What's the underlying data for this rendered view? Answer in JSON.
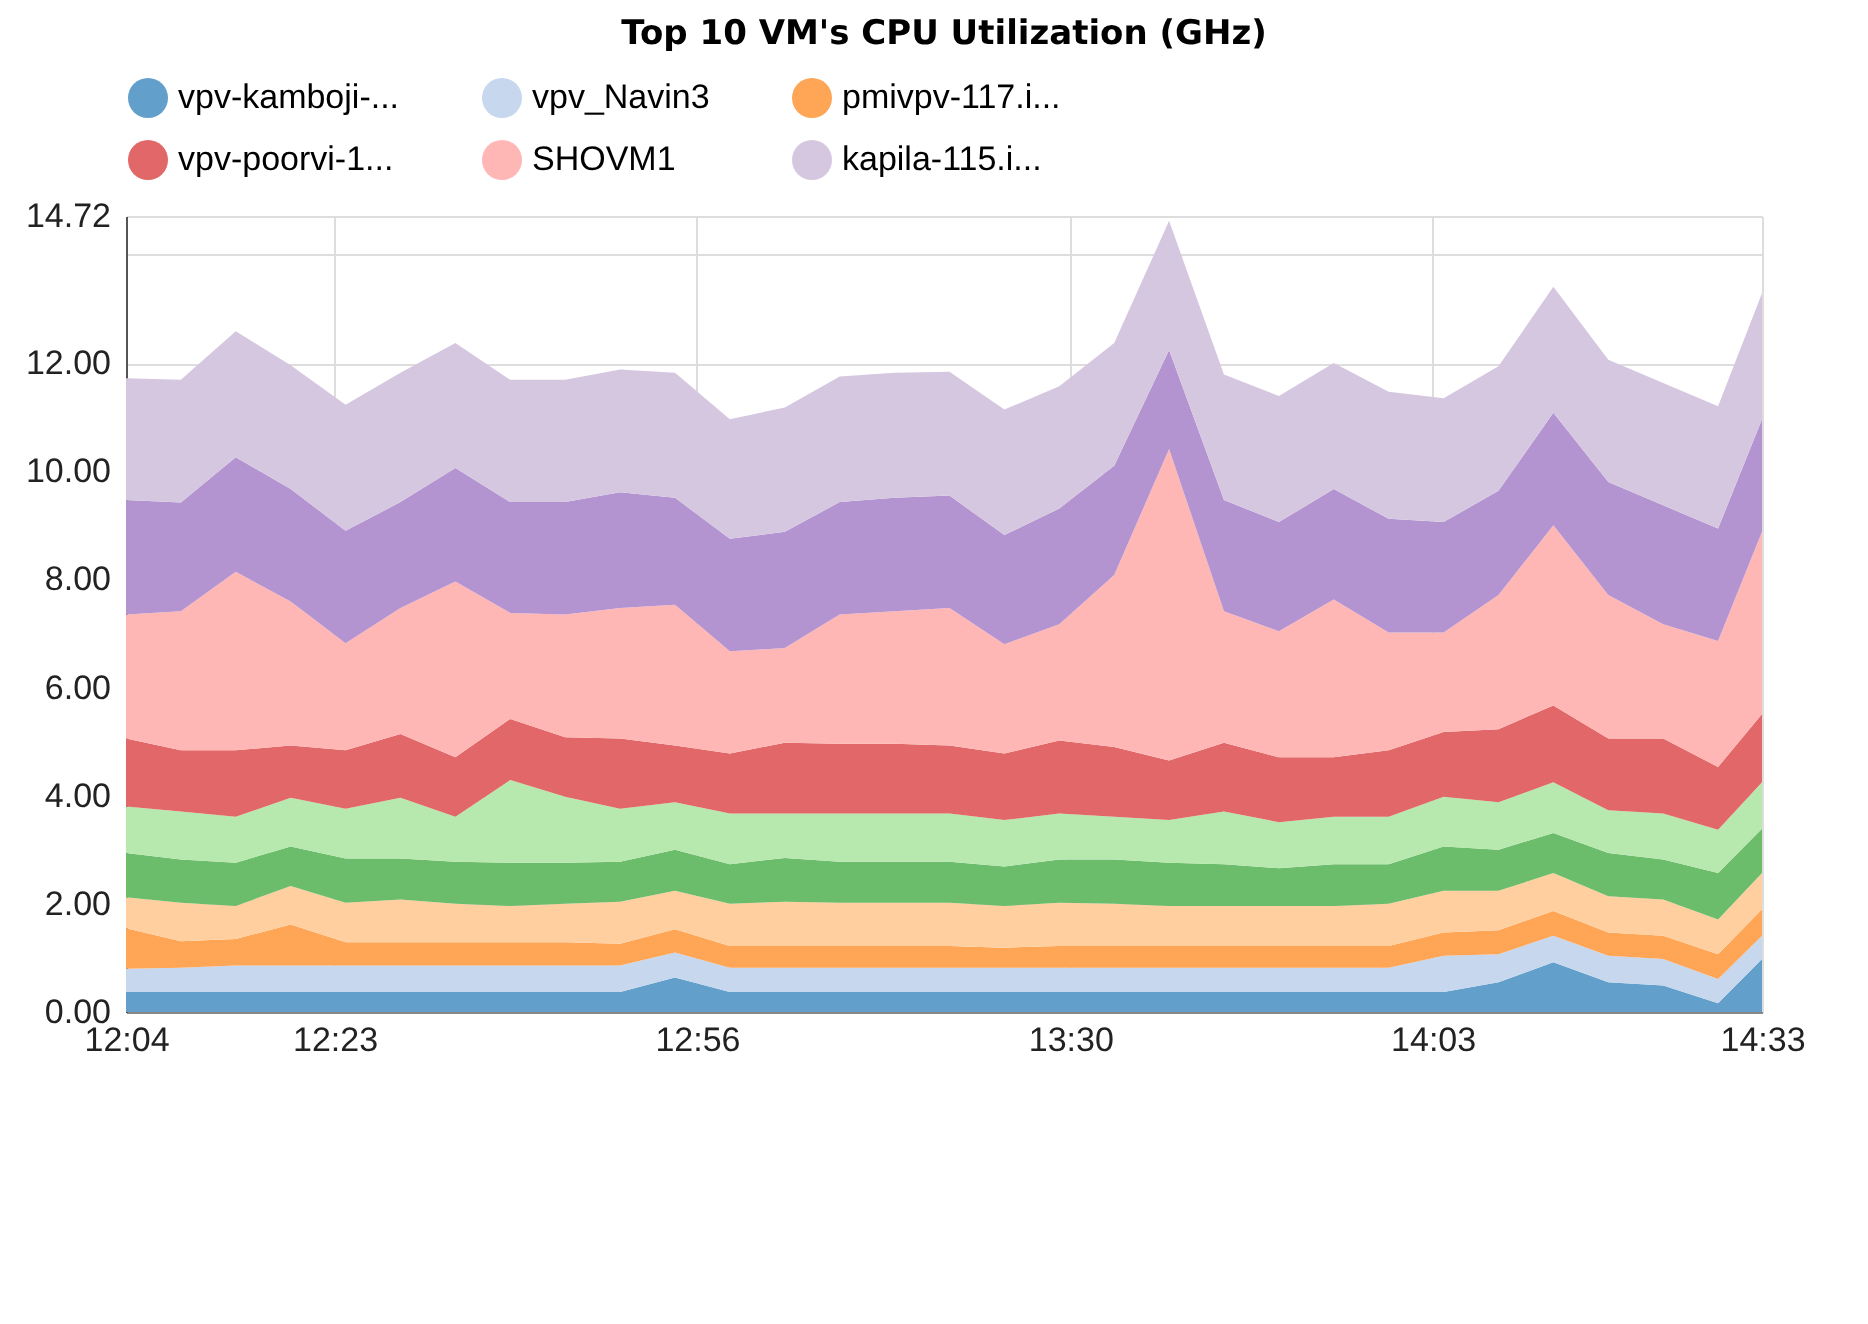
{
  "chart_data": {
    "type": "area",
    "title": "Top 10 VM's CPU Utilization (GHz)",
    "stacked": true,
    "grid": true,
    "legend": "top",
    "x": [
      12.0667,
      12.15,
      12.2333,
      12.3167,
      12.4,
      12.4833,
      12.5667,
      12.65,
      12.7333,
      12.8167,
      12.9,
      12.9833,
      13.0667,
      13.15,
      13.2333,
      13.3167,
      13.4,
      13.4833,
      13.5667,
      13.65,
      13.7333,
      13.8167,
      13.9,
      13.9833,
      14.0667,
      14.15,
      14.2333,
      14.3167,
      14.4,
      14.4833,
      14.55
    ],
    "xlim": [
      12.0667,
      14.55
    ],
    "xticks": [
      {
        "value": 12.0667,
        "label": "12:04"
      },
      {
        "value": 12.3833,
        "label": "12:23"
      },
      {
        "value": 12.9333,
        "label": "12:56"
      },
      {
        "value": 13.5,
        "label": "13:30"
      },
      {
        "value": 14.05,
        "label": "14:03"
      },
      {
        "value": 14.55,
        "label": "14:33"
      }
    ],
    "ylim": [
      0,
      14.72
    ],
    "yticks": [
      {
        "value": 0,
        "label": "0.00"
      },
      {
        "value": 2,
        "label": "2.00"
      },
      {
        "value": 4,
        "label": "4.00"
      },
      {
        "value": 6,
        "label": "6.00"
      },
      {
        "value": 8,
        "label": "8.00"
      },
      {
        "value": 10,
        "label": "10.00"
      },
      {
        "value": 12,
        "label": "12.00"
      },
      {
        "value": 14,
        "label": null
      },
      {
        "value": 14.72,
        "label": "14.72"
      }
    ],
    "series": [
      {
        "name": "vpv-kamboji-...",
        "color": "#629fca",
        "values": [
          0.37,
          0.37,
          0.37,
          0.37,
          0.37,
          0.37,
          0.37,
          0.37,
          0.37,
          0.37,
          0.64,
          0.37,
          0.37,
          0.37,
          0.37,
          0.37,
          0.37,
          0.37,
          0.37,
          0.37,
          0.37,
          0.37,
          0.37,
          0.37,
          0.37,
          0.55,
          0.92,
          0.55,
          0.49,
          0.16,
          0.98
        ]
      },
      {
        "name": "vpv_Navin3",
        "color": "#c6d7ee",
        "values": [
          0.43,
          0.45,
          0.49,
          0.49,
          0.49,
          0.49,
          0.49,
          0.49,
          0.49,
          0.49,
          0.46,
          0.45,
          0.45,
          0.45,
          0.45,
          0.45,
          0.45,
          0.45,
          0.45,
          0.45,
          0.45,
          0.45,
          0.45,
          0.45,
          0.67,
          0.52,
          0.49,
          0.49,
          0.49,
          0.45,
          0.43
        ]
      },
      {
        "name": "pmivpv-117.i...",
        "color": "#ffa556",
        "values": [
          0.75,
          0.49,
          0.49,
          0.76,
          0.43,
          0.43,
          0.43,
          0.43,
          0.43,
          0.4,
          0.43,
          0.4,
          0.4,
          0.4,
          0.4,
          0.4,
          0.37,
          0.4,
          0.4,
          0.4,
          0.4,
          0.4,
          0.4,
          0.4,
          0.43,
          0.44,
          0.46,
          0.43,
          0.43,
          0.46,
          0.49
        ]
      },
      {
        "color": "#ffcfa0",
        "values": [
          0.57,
          0.71,
          0.61,
          0.71,
          0.73,
          0.79,
          0.71,
          0.67,
          0.71,
          0.78,
          0.71,
          0.78,
          0.82,
          0.8,
          0.8,
          0.8,
          0.77,
          0.8,
          0.78,
          0.74,
          0.74,
          0.74,
          0.74,
          0.78,
          0.77,
          0.73,
          0.7,
          0.67,
          0.67,
          0.64,
          0.67
        ]
      },
      {
        "color": "#6bbc6b",
        "values": [
          0.82,
          0.8,
          0.8,
          0.73,
          0.82,
          0.76,
          0.78,
          0.8,
          0.76,
          0.74,
          0.76,
          0.73,
          0.81,
          0.76,
          0.76,
          0.76,
          0.73,
          0.8,
          0.82,
          0.8,
          0.77,
          0.7,
          0.77,
          0.73,
          0.82,
          0.76,
          0.74,
          0.8,
          0.74,
          0.86,
          0.82
        ]
      },
      {
        "color": "#b7e8ad",
        "values": [
          0.86,
          0.89,
          0.85,
          0.9,
          0.92,
          1.12,
          0.83,
          1.53,
          1.22,
          0.98,
          0.88,
          0.94,
          0.82,
          0.89,
          0.89,
          0.89,
          0.86,
          0.85,
          0.79,
          0.79,
          0.98,
          0.85,
          0.88,
          0.88,
          0.92,
          0.88,
          0.94,
          0.79,
          0.85,
          0.8,
          0.86
        ]
      },
      {
        "name": "vpv-poorvi-1...",
        "color": "#e26768",
        "values": [
          1.26,
          1.13,
          1.23,
          0.97,
          1.08,
          1.18,
          1.1,
          1.13,
          1.1,
          1.3,
          1.05,
          1.11,
          1.31,
          1.29,
          1.29,
          1.26,
          1.23,
          1.35,
          1.29,
          1.1,
          1.27,
          1.2,
          1.1,
          1.23,
          1.2,
          1.35,
          1.42,
          1.33,
          1.39,
          1.16,
          1.26
        ]
      },
      {
        "name": "SHOVM1",
        "color": "#ffb7b5",
        "values": [
          2.29,
          2.57,
          3.3,
          2.66,
          1.98,
          2.33,
          3.25,
          1.96,
          2.27,
          2.41,
          2.6,
          1.89,
          1.75,
          2.39,
          2.45,
          2.54,
          2.02,
          2.15,
          3.18,
          5.76,
          2.43,
          2.33,
          2.92,
          2.18,
          1.84,
          2.48,
          3.33,
          2.65,
          2.11,
          2.33,
          3.37
        ]
      },
      {
        "color": "#b494d0",
        "values": [
          2.12,
          2.01,
          2.12,
          2.08,
          2.08,
          1.96,
          2.1,
          2.05,
          2.08,
          2.14,
          1.98,
          2.08,
          2.15,
          2.08,
          2.1,
          2.08,
          2.02,
          2.14,
          2.02,
          1.83,
          2.06,
          2.02,
          2.04,
          2.1,
          2.04,
          1.93,
          2.08,
          2.09,
          2.2,
          2.08,
          2.08
        ]
      },
      {
        "name": "kapila-115.i...",
        "color": "#d6c7e1",
        "values": [
          2.25,
          2.27,
          2.33,
          2.29,
          2.33,
          2.39,
          2.31,
          2.26,
          2.26,
          2.27,
          2.31,
          2.21,
          2.3,
          2.32,
          2.31,
          2.29,
          2.32,
          2.26,
          2.27,
          2.39,
          2.32,
          2.33,
          2.33,
          2.35,
          2.29,
          2.3,
          2.33,
          2.26,
          2.26,
          2.26,
          2.33
        ]
      }
    ]
  }
}
